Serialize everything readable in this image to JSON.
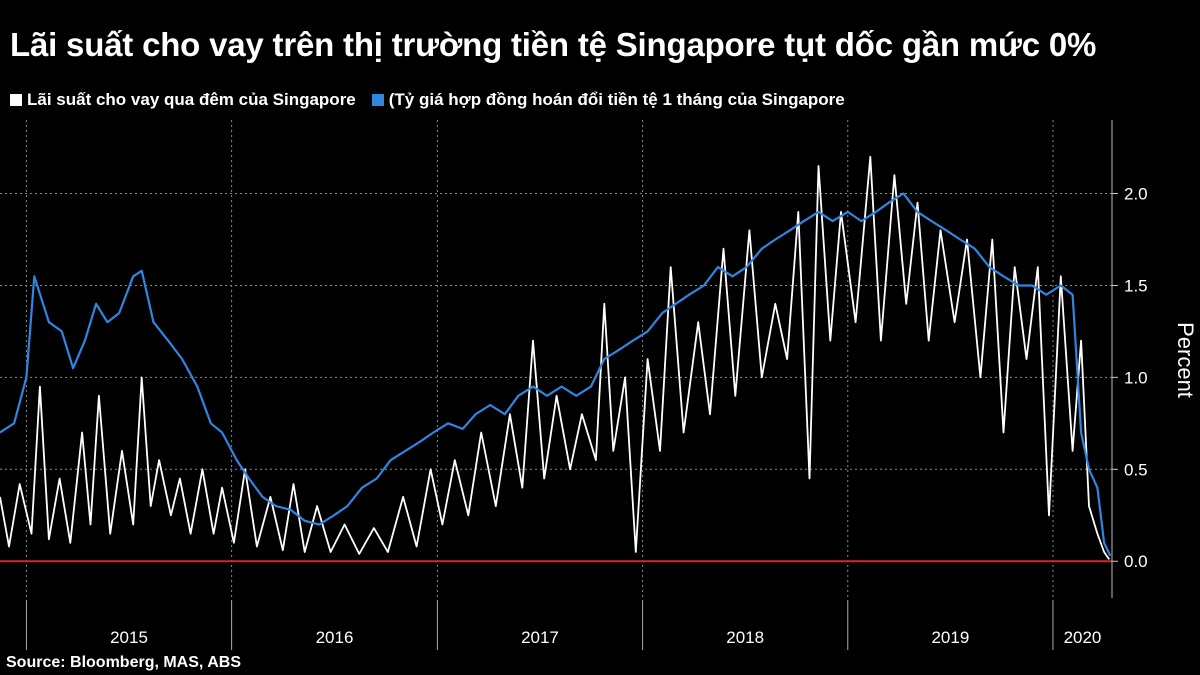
{
  "chart_data": {
    "type": "line",
    "title": "Lãi suất cho vay trên thị trường tiền tệ Singapore tụt dốc gần mức 0%",
    "ylabel": "Percent",
    "ylim": [
      -0.2,
      2.4
    ],
    "xlim": [
      "2014-11-15",
      "2020-04-15"
    ],
    "y_ticks": [
      "0.0",
      "0.5",
      "1.0",
      "1.5",
      "2.0"
    ],
    "x_ticks": [
      "2015",
      "2016",
      "2017",
      "2018",
      "2019",
      "2020"
    ],
    "grid": true,
    "legend_position": "top-left",
    "reference_line": {
      "y": 0.0,
      "color": "#e0202a"
    },
    "series": [
      {
        "name": "Lãi suất cho vay qua đêm của Singapore",
        "color": "#ffffff",
        "points": [
          [
            "2014-11-15",
            0.35
          ],
          [
            "2014-12-01",
            0.08
          ],
          [
            "2014-12-20",
            0.42
          ],
          [
            "2015-01-10",
            0.15
          ],
          [
            "2015-01-25",
            0.95
          ],
          [
            "2015-02-10",
            0.12
          ],
          [
            "2015-03-01",
            0.45
          ],
          [
            "2015-03-20",
            0.1
          ],
          [
            "2015-04-10",
            0.7
          ],
          [
            "2015-04-25",
            0.2
          ],
          [
            "2015-05-10",
            0.9
          ],
          [
            "2015-05-30",
            0.15
          ],
          [
            "2015-06-20",
            0.6
          ],
          [
            "2015-07-10",
            0.2
          ],
          [
            "2015-07-25",
            1.0
          ],
          [
            "2015-08-10",
            0.3
          ],
          [
            "2015-08-25",
            0.55
          ],
          [
            "2015-09-15",
            0.25
          ],
          [
            "2015-10-01",
            0.45
          ],
          [
            "2015-10-20",
            0.15
          ],
          [
            "2015-11-10",
            0.5
          ],
          [
            "2015-11-30",
            0.15
          ],
          [
            "2015-12-15",
            0.4
          ],
          [
            "2016-01-05",
            0.1
          ],
          [
            "2016-01-25",
            0.5
          ],
          [
            "2016-02-15",
            0.08
          ],
          [
            "2016-03-10",
            0.35
          ],
          [
            "2016-04-01",
            0.06
          ],
          [
            "2016-04-20",
            0.42
          ],
          [
            "2016-05-10",
            0.05
          ],
          [
            "2016-06-01",
            0.3
          ],
          [
            "2016-06-25",
            0.05
          ],
          [
            "2016-07-20",
            0.2
          ],
          [
            "2016-08-15",
            0.04
          ],
          [
            "2016-09-10",
            0.18
          ],
          [
            "2016-10-05",
            0.05
          ],
          [
            "2016-11-01",
            0.35
          ],
          [
            "2016-11-25",
            0.08
          ],
          [
            "2016-12-20",
            0.5
          ],
          [
            "2017-01-10",
            0.2
          ],
          [
            "2017-02-01",
            0.55
          ],
          [
            "2017-02-25",
            0.25
          ],
          [
            "2017-03-20",
            0.7
          ],
          [
            "2017-04-15",
            0.3
          ],
          [
            "2017-05-10",
            0.8
          ],
          [
            "2017-06-01",
            0.4
          ],
          [
            "2017-06-20",
            1.2
          ],
          [
            "2017-07-10",
            0.45
          ],
          [
            "2017-08-01",
            0.9
          ],
          [
            "2017-08-25",
            0.5
          ],
          [
            "2017-09-15",
            0.8
          ],
          [
            "2017-10-10",
            0.55
          ],
          [
            "2017-10-25",
            1.4
          ],
          [
            "2017-11-10",
            0.6
          ],
          [
            "2017-12-01",
            1.0
          ],
          [
            "2017-12-20",
            0.05
          ],
          [
            "2018-01-10",
            1.1
          ],
          [
            "2018-02-01",
            0.6
          ],
          [
            "2018-02-20",
            1.6
          ],
          [
            "2018-03-15",
            0.7
          ],
          [
            "2018-04-10",
            1.3
          ],
          [
            "2018-05-01",
            0.8
          ],
          [
            "2018-05-25",
            1.7
          ],
          [
            "2018-06-15",
            0.9
          ],
          [
            "2018-07-10",
            1.8
          ],
          [
            "2018-08-01",
            1.0
          ],
          [
            "2018-08-25",
            1.4
          ],
          [
            "2018-09-15",
            1.1
          ],
          [
            "2018-10-05",
            1.9
          ],
          [
            "2018-10-25",
            0.45
          ],
          [
            "2018-11-10",
            2.15
          ],
          [
            "2018-12-01",
            1.2
          ],
          [
            "2018-12-20",
            1.9
          ],
          [
            "2019-01-15",
            1.3
          ],
          [
            "2019-02-10",
            2.2
          ],
          [
            "2019-03-01",
            1.2
          ],
          [
            "2019-03-25",
            2.1
          ],
          [
            "2019-04-15",
            1.4
          ],
          [
            "2019-05-05",
            1.95
          ],
          [
            "2019-05-25",
            1.2
          ],
          [
            "2019-06-15",
            1.8
          ],
          [
            "2019-07-10",
            1.3
          ],
          [
            "2019-08-01",
            1.75
          ],
          [
            "2019-08-25",
            1.0
          ],
          [
            "2019-09-15",
            1.75
          ],
          [
            "2019-10-05",
            0.7
          ],
          [
            "2019-10-25",
            1.6
          ],
          [
            "2019-11-15",
            1.1
          ],
          [
            "2019-12-05",
            1.6
          ],
          [
            "2019-12-25",
            0.25
          ],
          [
            "2020-01-15",
            1.55
          ],
          [
            "2020-02-05",
            0.6
          ],
          [
            "2020-02-20",
            1.2
          ],
          [
            "2020-03-05",
            0.3
          ],
          [
            "2020-03-20",
            0.15
          ],
          [
            "2020-04-01",
            0.05
          ],
          [
            "2020-04-10",
            0.01
          ]
        ]
      },
      {
        "name": "Tỷ giá hợp đồng hoán đổi tiền tệ 1 tháng của Singapore",
        "color": "#2f86e0",
        "points": [
          [
            "2014-11-15",
            0.7
          ],
          [
            "2014-12-10",
            0.75
          ],
          [
            "2015-01-01",
            1.0
          ],
          [
            "2015-01-15",
            1.55
          ],
          [
            "2015-02-10",
            1.3
          ],
          [
            "2015-03-05",
            1.25
          ],
          [
            "2015-03-25",
            1.05
          ],
          [
            "2015-04-15",
            1.2
          ],
          [
            "2015-05-05",
            1.4
          ],
          [
            "2015-05-25",
            1.3
          ],
          [
            "2015-06-15",
            1.35
          ],
          [
            "2015-07-10",
            1.55
          ],
          [
            "2015-07-25",
            1.58
          ],
          [
            "2015-08-15",
            1.3
          ],
          [
            "2015-09-10",
            1.2
          ],
          [
            "2015-10-05",
            1.1
          ],
          [
            "2015-11-01",
            0.95
          ],
          [
            "2015-11-25",
            0.75
          ],
          [
            "2015-12-15",
            0.7
          ],
          [
            "2016-01-10",
            0.55
          ],
          [
            "2016-02-01",
            0.45
          ],
          [
            "2016-02-25",
            0.35
          ],
          [
            "2016-03-20",
            0.3
          ],
          [
            "2016-04-15",
            0.28
          ],
          [
            "2016-05-10",
            0.22
          ],
          [
            "2016-06-05",
            0.2
          ],
          [
            "2016-07-01",
            0.25
          ],
          [
            "2016-07-25",
            0.3
          ],
          [
            "2016-08-20",
            0.4
          ],
          [
            "2016-09-15",
            0.45
          ],
          [
            "2016-10-10",
            0.55
          ],
          [
            "2016-11-05",
            0.6
          ],
          [
            "2016-12-01",
            0.65
          ],
          [
            "2016-12-25",
            0.7
          ],
          [
            "2017-01-20",
            0.75
          ],
          [
            "2017-02-15",
            0.72
          ],
          [
            "2017-03-10",
            0.8
          ],
          [
            "2017-04-05",
            0.85
          ],
          [
            "2017-05-01",
            0.8
          ],
          [
            "2017-05-25",
            0.9
          ],
          [
            "2017-06-20",
            0.95
          ],
          [
            "2017-07-15",
            0.9
          ],
          [
            "2017-08-10",
            0.95
          ],
          [
            "2017-09-05",
            0.9
          ],
          [
            "2017-10-01",
            0.95
          ],
          [
            "2017-10-25",
            1.1
          ],
          [
            "2017-11-20",
            1.15
          ],
          [
            "2017-12-15",
            1.2
          ],
          [
            "2018-01-10",
            1.25
          ],
          [
            "2018-02-05",
            1.35
          ],
          [
            "2018-03-01",
            1.4
          ],
          [
            "2018-03-25",
            1.45
          ],
          [
            "2018-04-20",
            1.5
          ],
          [
            "2018-05-15",
            1.6
          ],
          [
            "2018-06-10",
            1.55
          ],
          [
            "2018-07-05",
            1.6
          ],
          [
            "2018-08-01",
            1.7
          ],
          [
            "2018-08-25",
            1.75
          ],
          [
            "2018-09-20",
            1.8
          ],
          [
            "2018-10-15",
            1.85
          ],
          [
            "2018-11-10",
            1.9
          ],
          [
            "2018-12-05",
            1.85
          ],
          [
            "2019-01-01",
            1.9
          ],
          [
            "2019-01-25",
            1.85
          ],
          [
            "2019-02-20",
            1.9
          ],
          [
            "2019-03-15",
            1.95
          ],
          [
            "2019-04-10",
            2.0
          ],
          [
            "2019-05-05",
            1.9
          ],
          [
            "2019-05-30",
            1.85
          ],
          [
            "2019-06-25",
            1.8
          ],
          [
            "2019-07-20",
            1.75
          ],
          [
            "2019-08-15",
            1.7
          ],
          [
            "2019-09-10",
            1.6
          ],
          [
            "2019-10-05",
            1.55
          ],
          [
            "2019-11-01",
            1.5
          ],
          [
            "2019-11-25",
            1.5
          ],
          [
            "2019-12-20",
            1.45
          ],
          [
            "2020-01-15",
            1.5
          ],
          [
            "2020-02-05",
            1.45
          ],
          [
            "2020-02-20",
            0.7
          ],
          [
            "2020-03-05",
            0.5
          ],
          [
            "2020-03-20",
            0.4
          ],
          [
            "2020-04-01",
            0.1
          ],
          [
            "2020-04-12",
            0.03
          ]
        ]
      }
    ]
  },
  "legend": {
    "item1": "Lãi suất cho vay qua đêm của Singapore",
    "item2": "(Tỷ giá hợp đồng hoán đổi tiền tệ 1 tháng của Singapore"
  },
  "source": "Source: Bloomberg, MAS, ABS"
}
